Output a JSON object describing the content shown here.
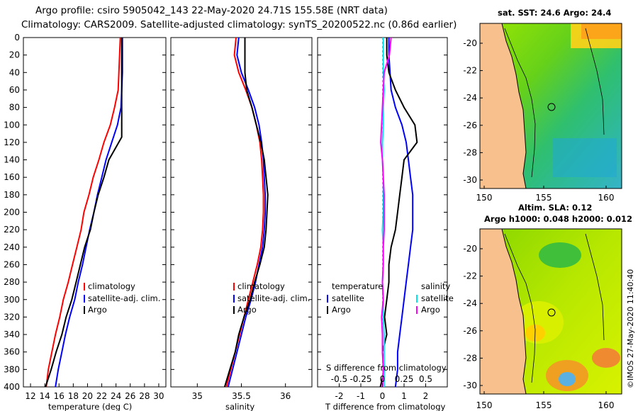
{
  "title": {
    "line1": "Argo profile: csiro 5905042_143 22-May-2020 24.71S 155.58E (NRT data)",
    "line2": "Climatology: CARS2009. Satellite-adjusted climatology: synTS_20200522.nc (0.86d earlier)"
  },
  "colors": {
    "climatology": "#ff0000",
    "satellite": "#0000ff",
    "argo": "#000000",
    "sal_climatology": "#ff00ff",
    "sal_satellite": "#00e5ee",
    "land": "#f7c08c"
  },
  "depth_ticks": [
    "0",
    "20",
    "40",
    "60",
    "80",
    "100",
    "120",
    "140",
    "160",
    "180",
    "200",
    "220",
    "240",
    "260",
    "280",
    "300",
    "320",
    "340",
    "360",
    "380",
    "400"
  ],
  "chart_data": [
    {
      "type": "line",
      "xlabel": "temperature (deg C)",
      "ylabel": "",
      "xlim": [
        11,
        31
      ],
      "ylim": [
        400,
        0
      ],
      "xticks": [
        "12",
        "14",
        "16",
        "18",
        "20",
        "22",
        "24",
        "26",
        "28",
        "30"
      ],
      "legend": [
        "climatology",
        "satellite-adj. clim.",
        "Argo"
      ],
      "series": [
        {
          "name": "climatology",
          "color_key": "climatology",
          "x": [
            24.6,
            24.5,
            24.4,
            24.3,
            23.8,
            23.2,
            22.3,
            21.6,
            20.8,
            20.2,
            19.5,
            19.1,
            18.5,
            17.9,
            17.3,
            16.6,
            16.1,
            15.5,
            15.0,
            14.5,
            14.2
          ],
          "y": [
            0,
            20,
            40,
            60,
            80,
            100,
            120,
            140,
            160,
            180,
            200,
            220,
            240,
            260,
            280,
            300,
            320,
            340,
            360,
            380,
            400
          ]
        },
        {
          "name": "satellite-adj. clim.",
          "color_key": "satellite",
          "x": [
            24.9,
            24.9,
            24.9,
            24.8,
            24.7,
            24.2,
            23.4,
            22.6,
            22.0,
            21.4,
            20.9,
            20.3,
            19.8,
            19.3,
            18.7,
            18.2,
            17.5,
            16.9,
            16.4,
            15.9,
            15.5
          ],
          "y": [
            0,
            20,
            40,
            60,
            80,
            100,
            120,
            140,
            160,
            180,
            200,
            220,
            240,
            260,
            280,
            300,
            320,
            340,
            360,
            380,
            400
          ]
        },
        {
          "name": "Argo",
          "color_key": "argo",
          "x": [
            24.8,
            24.8,
            24.8,
            24.8,
            24.8,
            24.8,
            24.8,
            23.0,
            22.3,
            21.5,
            20.9,
            20.4,
            19.6,
            19.0,
            18.4,
            17.8,
            17.0,
            16.4,
            15.6,
            14.9,
            14.1
          ],
          "y": [
            0,
            20,
            40,
            60,
            80,
            100,
            114,
            140,
            160,
            180,
            200,
            220,
            240,
            260,
            280,
            300,
            320,
            340,
            360,
            380,
            400
          ]
        }
      ]
    },
    {
      "type": "line",
      "xlabel": "salinity",
      "ylabel": "",
      "xlim": [
        34.7,
        36.3
      ],
      "ylim": [
        400,
        0
      ],
      "xticks": [
        "35",
        "35.5",
        "36"
      ],
      "legend": [
        "climatology",
        "satellite-adj. clim.",
        "Argo"
      ],
      "series": [
        {
          "name": "climatology",
          "color_key": "climatology",
          "x": [
            35.44,
            35.42,
            35.47,
            35.55,
            35.62,
            35.67,
            35.71,
            35.73,
            35.74,
            35.75,
            35.75,
            35.74,
            35.72,
            35.68,
            35.63,
            35.58,
            35.53,
            35.48,
            35.43,
            35.38,
            35.33
          ],
          "y": [
            0,
            20,
            40,
            60,
            80,
            100,
            120,
            140,
            160,
            180,
            200,
            220,
            240,
            260,
            280,
            300,
            320,
            340,
            360,
            380,
            400
          ]
        },
        {
          "name": "satellite-adj. clim.",
          "color_key": "satellite",
          "x": [
            35.47,
            35.45,
            35.5,
            35.58,
            35.65,
            35.7,
            35.73,
            35.75,
            35.76,
            35.77,
            35.77,
            35.76,
            35.74,
            35.7,
            35.66,
            35.61,
            35.55,
            35.5,
            35.45,
            35.4,
            35.35
          ],
          "y": [
            0,
            20,
            40,
            60,
            80,
            100,
            120,
            140,
            160,
            180,
            200,
            220,
            240,
            260,
            280,
            300,
            320,
            340,
            360,
            380,
            400
          ]
        },
        {
          "name": "Argo",
          "color_key": "argo",
          "x": [
            35.54,
            35.54,
            35.54,
            35.56,
            35.62,
            35.67,
            35.72,
            35.76,
            35.78,
            35.8,
            35.79,
            35.78,
            35.76,
            35.71,
            35.65,
            35.6,
            35.53,
            35.47,
            35.43,
            35.37,
            35.31
          ],
          "y": [
            0,
            20,
            40,
            60,
            80,
            100,
            120,
            140,
            160,
            180,
            200,
            220,
            240,
            260,
            280,
            300,
            320,
            340,
            360,
            380,
            400
          ]
        }
      ]
    },
    {
      "type": "line",
      "xlabel": "T difference from climatology",
      "secondary_xlabel": "S difference from climatology",
      "xlim": [
        -3,
        3
      ],
      "secondary_xlim": [
        -0.75,
        0.75
      ],
      "ylim": [
        400,
        0
      ],
      "xticks": [
        "-2",
        "-1",
        "0",
        "1",
        "2"
      ],
      "secondary_xticks": [
        "-0.5",
        "-0.25",
        "0",
        "0.25",
        "0.5"
      ],
      "legend_temperature_title": "temperature",
      "legend_salinity_title": "salinity",
      "legend_temperature": [
        "satellite",
        "Argo"
      ],
      "legend_salinity": [
        "satellite",
        "Argo"
      ],
      "series": [
        {
          "name": "T satellite",
          "color_key": "satellite",
          "axis": "T",
          "x": [
            0.3,
            0.3,
            0.35,
            0.4,
            0.6,
            0.9,
            1.1,
            1.2,
            1.3,
            1.4,
            1.4,
            1.4,
            1.3,
            1.2,
            1.1,
            1.0,
            0.9,
            0.8,
            0.7,
            0.7,
            0.6
          ],
          "y": [
            0,
            20,
            40,
            60,
            80,
            100,
            120,
            140,
            160,
            180,
            200,
            220,
            240,
            260,
            280,
            300,
            320,
            340,
            360,
            380,
            400
          ]
        },
        {
          "name": "T Argo",
          "color_key": "argo",
          "axis": "T",
          "x": [
            0.2,
            0.2,
            0.3,
            0.6,
            1.0,
            1.5,
            1.6,
            1.0,
            0.9,
            0.8,
            0.7,
            0.6,
            0.4,
            0.3,
            0.3,
            0.2,
            0.1,
            0.2,
            0.0,
            0.1,
            -0.1
          ],
          "y": [
            0,
            20,
            40,
            60,
            80,
            100,
            120,
            140,
            160,
            180,
            200,
            220,
            240,
            260,
            280,
            300,
            320,
            340,
            360,
            380,
            400
          ]
        },
        {
          "name": "S satellite",
          "color_key": "sal_satellite",
          "axis": "S",
          "x": [
            0.01,
            0.01,
            0.01,
            0.02,
            0.01,
            0.01,
            0.0,
            0.0,
            0.01,
            0.01,
            0.01,
            0.0,
            0.01,
            0.01,
            0.0,
            0.01,
            0.01,
            0.02,
            0.02,
            0.02,
            0.02
          ],
          "y": [
            0,
            20,
            40,
            60,
            80,
            100,
            120,
            140,
            160,
            180,
            200,
            220,
            240,
            260,
            280,
            300,
            320,
            340,
            360,
            380,
            400
          ]
        },
        {
          "name": "S Argo",
          "color_key": "sal_climatology",
          "axis": "S",
          "x": [
            0.1,
            0.08,
            0.02,
            0.01,
            0.0,
            -0.01,
            -0.02,
            0.0,
            0.01,
            0.02,
            0.02,
            0.02,
            0.01,
            0.01,
            0.0,
            0.01,
            -0.01,
            0.0,
            0.0,
            0.01,
            0.0
          ],
          "y": [
            0,
            20,
            40,
            60,
            80,
            100,
            120,
            140,
            160,
            180,
            200,
            220,
            240,
            260,
            280,
            300,
            320,
            340,
            360,
            380,
            400
          ]
        }
      ]
    },
    {
      "type": "heatmap",
      "title": "sat. SST: 24.6 Argo: 24.4",
      "xticks": [
        "150",
        "155",
        "160"
      ],
      "yticks": [
        "-20",
        "-22",
        "-24",
        "-26",
        "-28",
        "-30"
      ]
    },
    {
      "type": "heatmap",
      "title_line1": "Altim. SLA: 0.12",
      "title_line2": "Argo h1000: 0.048 h2000: 0.012",
      "xticks": [
        "150",
        "155",
        "160"
      ],
      "yticks": [
        "-20",
        "-22",
        "-24",
        "-26",
        "-28",
        "-30"
      ]
    }
  ],
  "stamp": "©IMOS 27-May-2020 11:40:40"
}
